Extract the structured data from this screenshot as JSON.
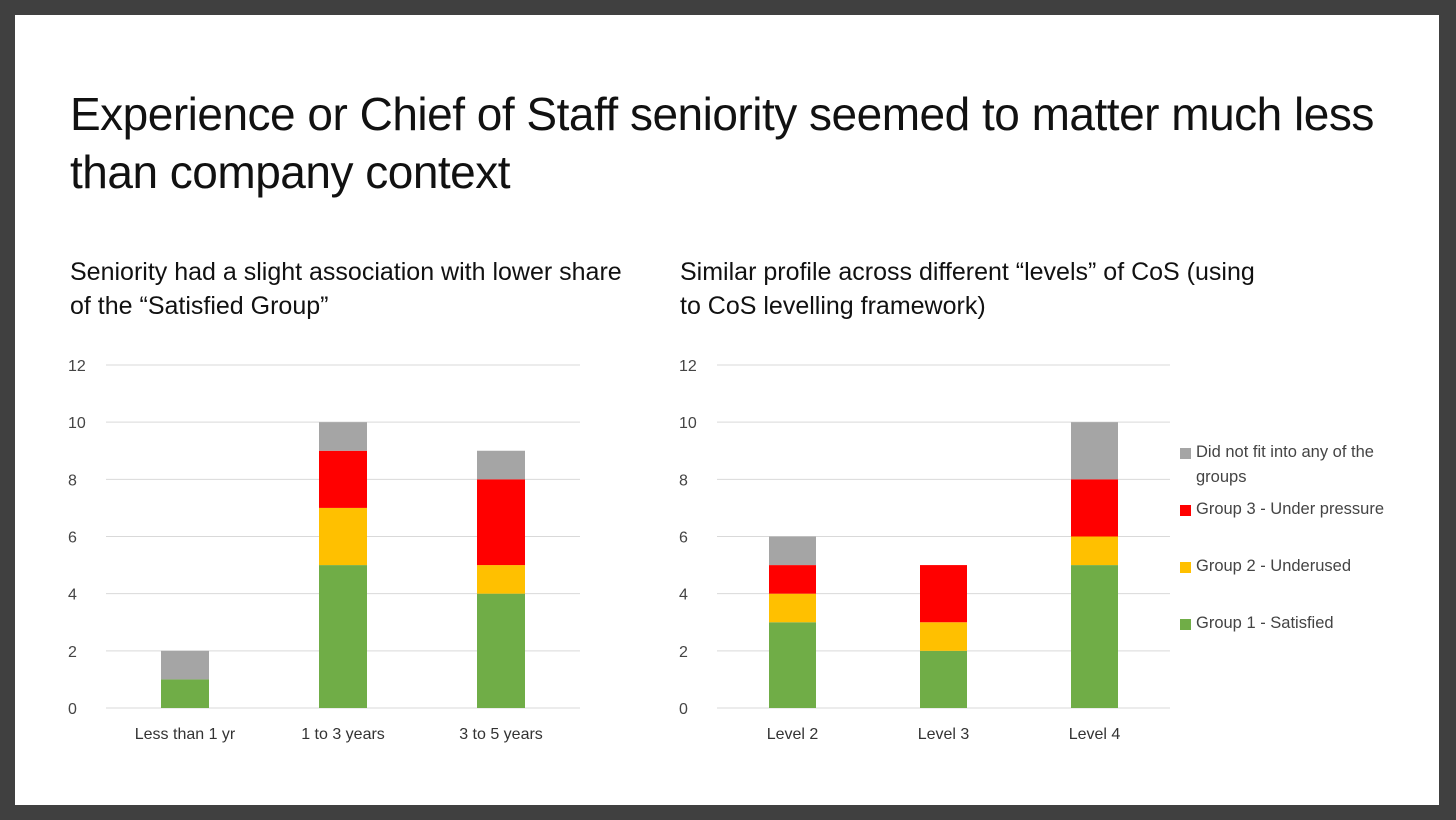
{
  "title": "Experience or Chief of Staff seniority seemed to matter much less than company context",
  "colors": {
    "group1": "#70ad47",
    "group2": "#ffc000",
    "group3": "#ff0000",
    "not_fit": "#a5a5a5",
    "gridline": "#d9d9d9"
  },
  "legend": [
    {
      "label": "Did not fit into any of the groups",
      "color": "#a5a5a5"
    },
    {
      "label": "Group 3 - Under pressure",
      "color": "#ff0000"
    },
    {
      "label": "Group 2 - Underused",
      "color": "#ffc000"
    },
    {
      "label": "Group 1 - Satisfied",
      "color": "#70ad47"
    }
  ],
  "chart_data": [
    {
      "type": "bar",
      "stacked": true,
      "title": "Seniority had a slight association with lower share of the “Satisfied Group”",
      "categories": [
        "Less than 1 yr",
        "1 to 3 years",
        "3 to 5 years"
      ],
      "ylim": [
        0,
        12
      ],
      "yticks": [
        0,
        2,
        4,
        6,
        8,
        10,
        12
      ],
      "series": [
        {
          "name": "Group 1 - Satisfied",
          "color": "#70ad47",
          "values": [
            1,
            5,
            4
          ]
        },
        {
          "name": "Group 2 - Underused",
          "color": "#ffc000",
          "values": [
            0,
            2,
            1
          ]
        },
        {
          "name": "Group 3 - Under pressure",
          "color": "#ff0000",
          "values": [
            0,
            2,
            3
          ]
        },
        {
          "name": "Did not fit into any of the groups",
          "color": "#a5a5a5",
          "values": [
            1,
            1,
            1
          ]
        }
      ]
    },
    {
      "type": "bar",
      "stacked": true,
      "title": "Similar profile across different “levels” of CoS (using to CoS levelling framework)",
      "categories": [
        "Level 2",
        "Level 3",
        "Level 4"
      ],
      "ylim": [
        0,
        12
      ],
      "yticks": [
        0,
        2,
        4,
        6,
        8,
        10,
        12
      ],
      "series": [
        {
          "name": "Group 1 - Satisfied",
          "color": "#70ad47",
          "values": [
            3,
            2,
            5
          ]
        },
        {
          "name": "Group 2 - Underused",
          "color": "#ffc000",
          "values": [
            1,
            1,
            1
          ]
        },
        {
          "name": "Group 3 - Under pressure",
          "color": "#ff0000",
          "values": [
            1,
            2,
            2
          ]
        },
        {
          "name": "Did not fit into any of the groups",
          "color": "#a5a5a5",
          "values": [
            1,
            0,
            2
          ]
        }
      ]
    }
  ]
}
